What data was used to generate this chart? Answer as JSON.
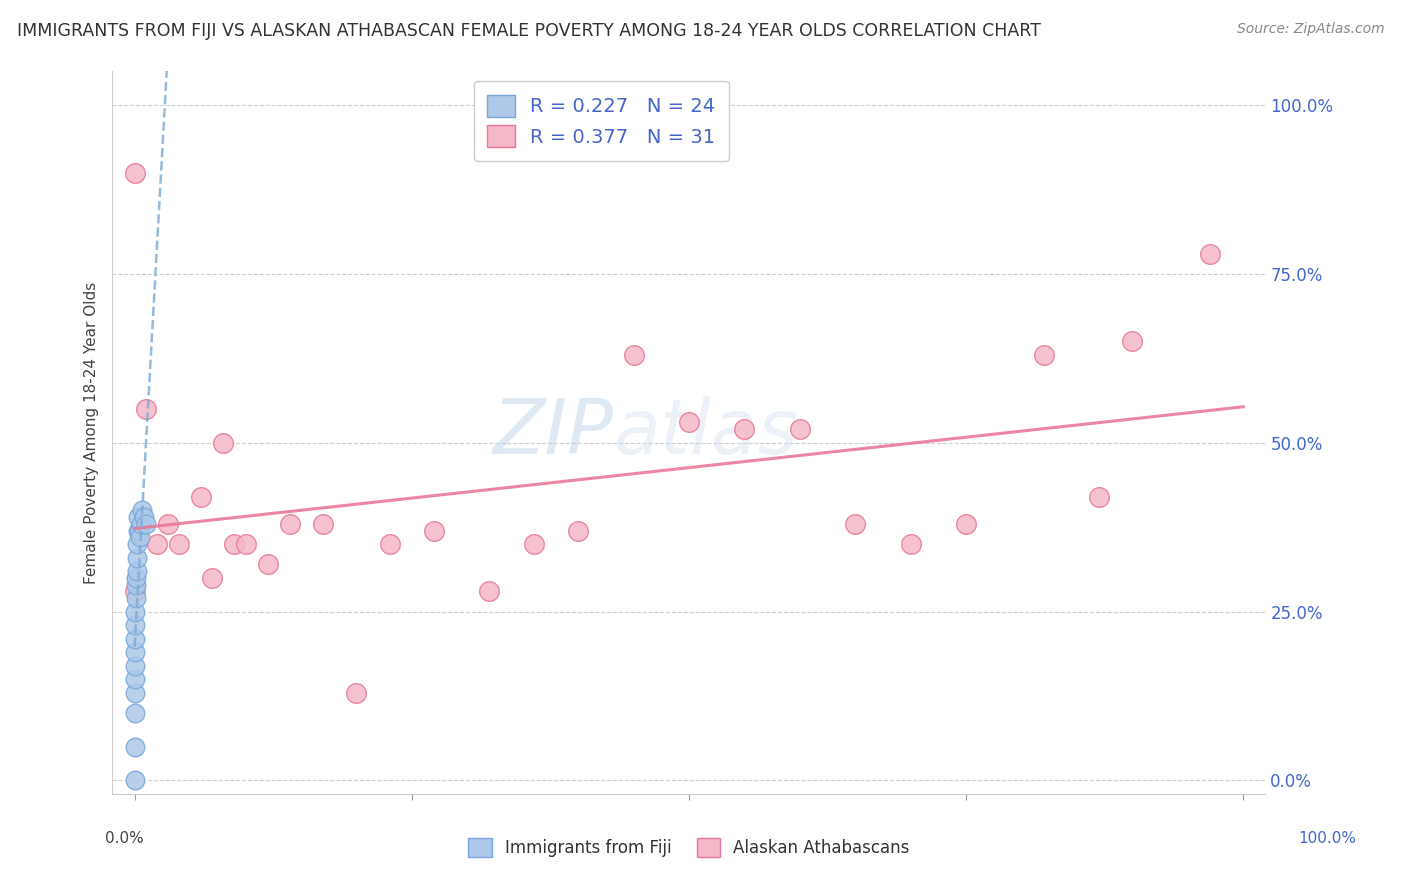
{
  "title": "IMMIGRANTS FROM FIJI VS ALASKAN ATHABASCAN FEMALE POVERTY AMONG 18-24 YEAR OLDS CORRELATION CHART",
  "source": "Source: ZipAtlas.com",
  "ylabel": "Female Poverty Among 18-24 Year Olds",
  "watermark_1": "ZIP",
  "watermark_2": "atlas",
  "fiji_color": "#adc8e8",
  "athabascan_color": "#f5b8c8",
  "fiji_edge": "#7aa8d8",
  "athabascan_edge": "#e87898",
  "fiji_R": 0.227,
  "fiji_N": 24,
  "athabascan_R": 0.377,
  "athabascan_N": 31,
  "fiji_line_color": "#7aaad8",
  "athabascan_line_color": "#e87898",
  "fiji_x": [
    0.0,
    0.0,
    0.0,
    0.0,
    0.0,
    0.0,
    0.0,
    0.0,
    0.0,
    0.0,
    0.001,
    0.001,
    0.001,
    0.002,
    0.002,
    0.002,
    0.003,
    0.003,
    0.004,
    0.005,
    0.006,
    0.007,
    0.008,
    0.01
  ],
  "fiji_y": [
    0.0,
    0.05,
    0.1,
    0.13,
    0.15,
    0.17,
    0.19,
    0.21,
    0.23,
    0.25,
    0.27,
    0.29,
    0.3,
    0.31,
    0.33,
    0.35,
    0.37,
    0.39,
    0.37,
    0.36,
    0.38,
    0.4,
    0.39,
    0.38
  ],
  "athabascan_x": [
    0.0,
    0.0,
    0.01,
    0.02,
    0.03,
    0.04,
    0.06,
    0.07,
    0.08,
    0.09,
    0.1,
    0.12,
    0.14,
    0.17,
    0.2,
    0.23,
    0.27,
    0.32,
    0.36,
    0.4,
    0.45,
    0.5,
    0.55,
    0.6,
    0.65,
    0.7,
    0.75,
    0.82,
    0.87,
    0.9,
    0.97
  ],
  "athabascan_y": [
    0.9,
    0.28,
    0.55,
    0.35,
    0.38,
    0.35,
    0.42,
    0.3,
    0.5,
    0.35,
    0.35,
    0.32,
    0.38,
    0.38,
    0.13,
    0.35,
    0.37,
    0.28,
    0.35,
    0.37,
    0.63,
    0.53,
    0.52,
    0.52,
    0.38,
    0.35,
    0.38,
    0.63,
    0.42,
    0.65,
    0.78
  ],
  "yticks": [
    0.0,
    0.25,
    0.5,
    0.75,
    1.0
  ],
  "ytick_labels": [
    "0.0%",
    "25.0%",
    "50.0%",
    "75.0%",
    "100.0%"
  ],
  "xlim": [
    -0.02,
    1.02
  ],
  "ylim": [
    -0.02,
    1.05
  ],
  "background_color": "#ffffff",
  "grid_color": "#bbbbbb",
  "label_color": "#4466cc",
  "legend_r_color": "#4466cc"
}
